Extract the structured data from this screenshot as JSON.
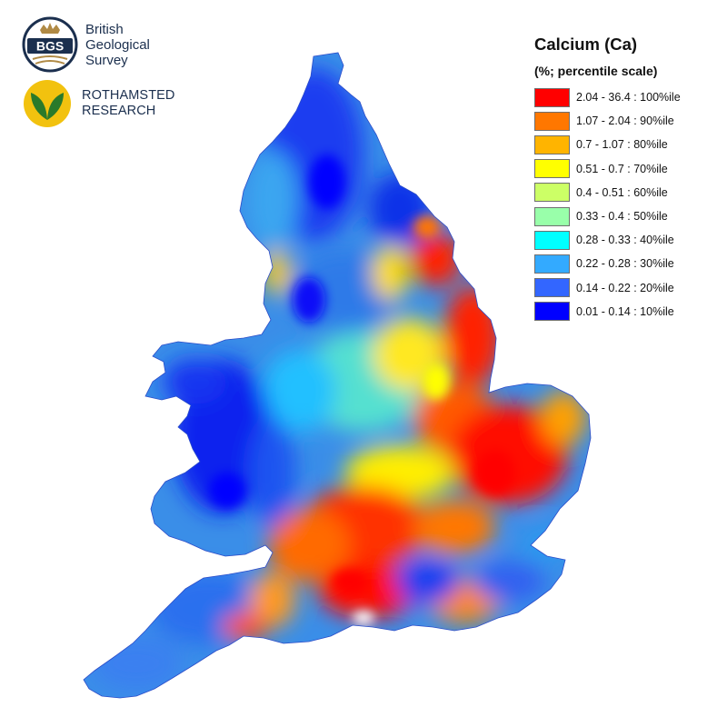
{
  "logos": {
    "bgs": {
      "badge_text": "BGS",
      "lines": [
        "British",
        "Geological",
        "Survey"
      ]
    },
    "rothamsted": {
      "lines": [
        "ROTHAMSTED",
        "RESEARCH"
      ]
    }
  },
  "legend": {
    "title": "Calcium (Ca)",
    "subtitle": "(%; percentile scale)",
    "classes": [
      {
        "label": "2.04 - 36.4 : 100%ile",
        "color": "#ff0000"
      },
      {
        "label": "1.07 - 2.04 : 90%ile",
        "color": "#ff7700"
      },
      {
        "label": "0.7 - 1.07 : 80%ile",
        "color": "#ffb400"
      },
      {
        "label": "0.51 - 0.7 : 70%ile",
        "color": "#ffff00"
      },
      {
        "label": "0.4 - 0.51 : 60%ile",
        "color": "#ccff66"
      },
      {
        "label": "0.33 - 0.4 : 50%ile",
        "color": "#99ffaa"
      },
      {
        "label": "0.28 - 0.33 : 40%ile",
        "color": "#00ffff"
      },
      {
        "label": "0.22 - 0.28 : 30%ile",
        "color": "#33aaff"
      },
      {
        "label": "0.14 - 0.22 : 20%ile",
        "color": "#3366ff"
      },
      {
        "label": "0.01 - 0.14 : 10%ile",
        "color": "#0000ff"
      }
    ]
  }
}
